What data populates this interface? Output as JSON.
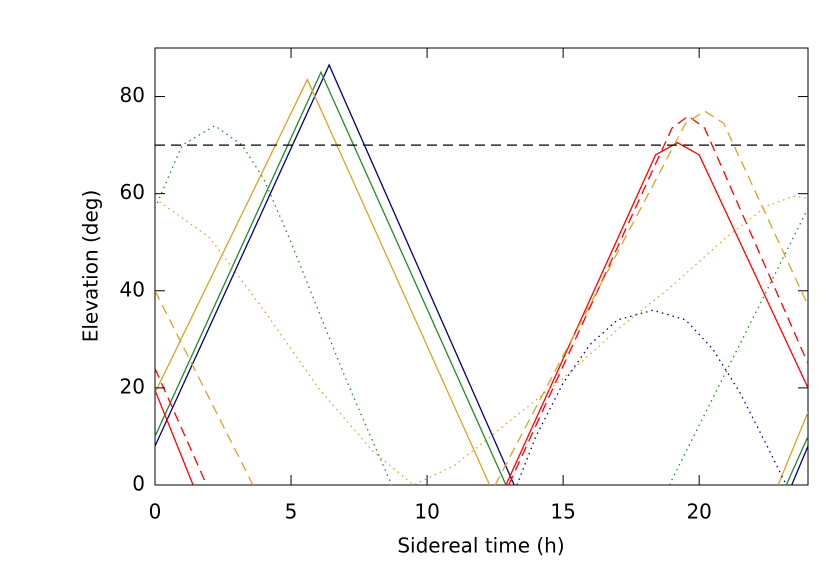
{
  "chart_data": {
    "type": "line",
    "x_label": "Sidereal time (h)",
    "y_label": "Elevation (deg)",
    "xlim": [
      0,
      24
    ],
    "ylim": [
      0,
      90
    ],
    "xticks": [
      0,
      5,
      10,
      15,
      20
    ],
    "yticks": [
      0,
      20,
      40,
      60,
      80
    ],
    "series": [
      {
        "color": "#000080",
        "dash": "solid",
        "x": [
          0,
          6.4,
          13.2,
          null,
          23.4,
          24
        ],
        "values": [
          8,
          86.5,
          0,
          null,
          0,
          8
        ]
      },
      {
        "color": "#228b22",
        "dash": "solid",
        "x": [
          0,
          6.1,
          12.9,
          null,
          23.2,
          24
        ],
        "values": [
          10,
          85,
          0,
          null,
          0,
          10
        ]
      },
      {
        "color": "#daa520",
        "dash": "solid",
        "x": [
          0,
          5.6,
          12.3,
          null,
          22.9,
          24
        ],
        "values": [
          19,
          83.5,
          0,
          null,
          0,
          15
        ]
      },
      {
        "color": "#ff0000",
        "dash": "solid",
        "x": [
          0,
          1.4,
          null,
          12.9,
          18.4,
          19.2,
          20,
          24
        ],
        "values": [
          19.5,
          0,
          null,
          0,
          68,
          70.5,
          68,
          20
        ]
      },
      {
        "color": "#ff0000",
        "dash": "dashed",
        "x": [
          0,
          1.9,
          null,
          13,
          19,
          19.6,
          20.2,
          24
        ],
        "values": [
          24,
          0,
          null,
          0,
          73.5,
          76,
          73.5,
          25
        ]
      },
      {
        "color": "#daa520",
        "dash": "dashed",
        "x": [
          0,
          3.6,
          null,
          12.5,
          19.5,
          20.2,
          20.9,
          24
        ],
        "values": [
          40,
          0,
          null,
          0,
          74.5,
          77,
          74.5,
          37
        ]
      },
      {
        "color": "#228b22",
        "dash": "dotted",
        "x": [
          0,
          1,
          2.2,
          3.2,
          4,
          5,
          6,
          7,
          8,
          8.7,
          null,
          18.9,
          24
        ],
        "values": [
          57,
          70,
          74,
          70,
          63,
          50,
          36,
          22,
          9,
          0,
          null,
          0,
          57
        ]
      },
      {
        "color": "#daa520",
        "dash": "dotted",
        "x": [
          0,
          2,
          4,
          6,
          8,
          9.5,
          11,
          13,
          15,
          17,
          19,
          21,
          22.5,
          23.5,
          24
        ],
        "values": [
          59,
          51,
          36,
          20,
          7,
          0,
          4,
          13,
          22,
          32,
          41,
          51,
          57.5,
          59.5,
          59
        ]
      },
      {
        "color": "#000080",
        "dash": "dotted",
        "x": [
          13.3,
          14,
          15,
          16,
          17,
          18.3,
          19.5,
          20.5,
          21.5,
          22.5,
          23.2
        ],
        "values": [
          0,
          10,
          21,
          29,
          34,
          36,
          34,
          28,
          19,
          8,
          0
        ]
      },
      {
        "color": "#000000",
        "dash": "dashed",
        "x": [
          0,
          24
        ],
        "values": [
          70,
          70
        ]
      }
    ]
  }
}
